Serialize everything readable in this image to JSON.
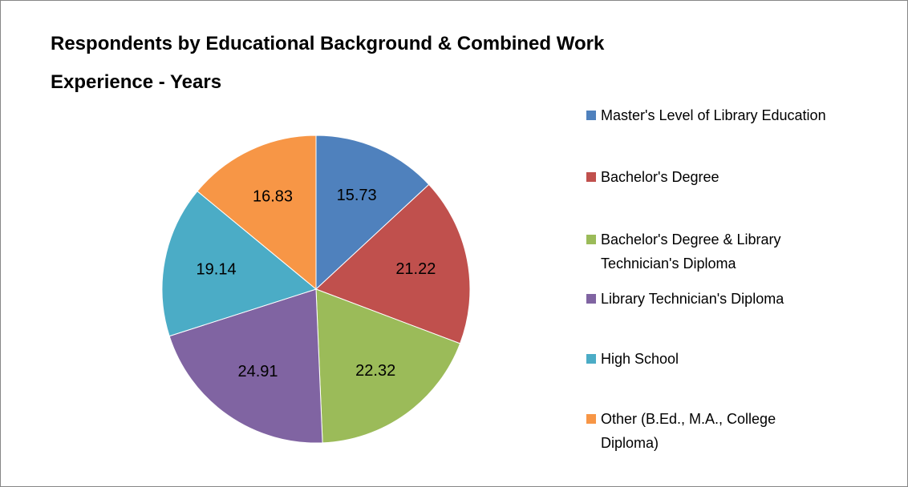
{
  "chart_data": {
    "type": "pie",
    "title": "Respondents by Educational Background & Combined Work Experience - Years",
    "categories": [
      "Master's Level of Library Education",
      "Bachelor's Degree",
      "Bachelor's Degree & Library Technician's Diploma",
      "Library Technician's Diploma",
      "High School",
      "Other (B.Ed., M.A., College Diploma)"
    ],
    "values": [
      15.73,
      21.22,
      22.32,
      24.91,
      19.14,
      16.83
    ],
    "colors": [
      "#4f81bd",
      "#c0504d",
      "#9bbb59",
      "#8064a2",
      "#4bacc6",
      "#f79646"
    ],
    "legend": "right"
  }
}
